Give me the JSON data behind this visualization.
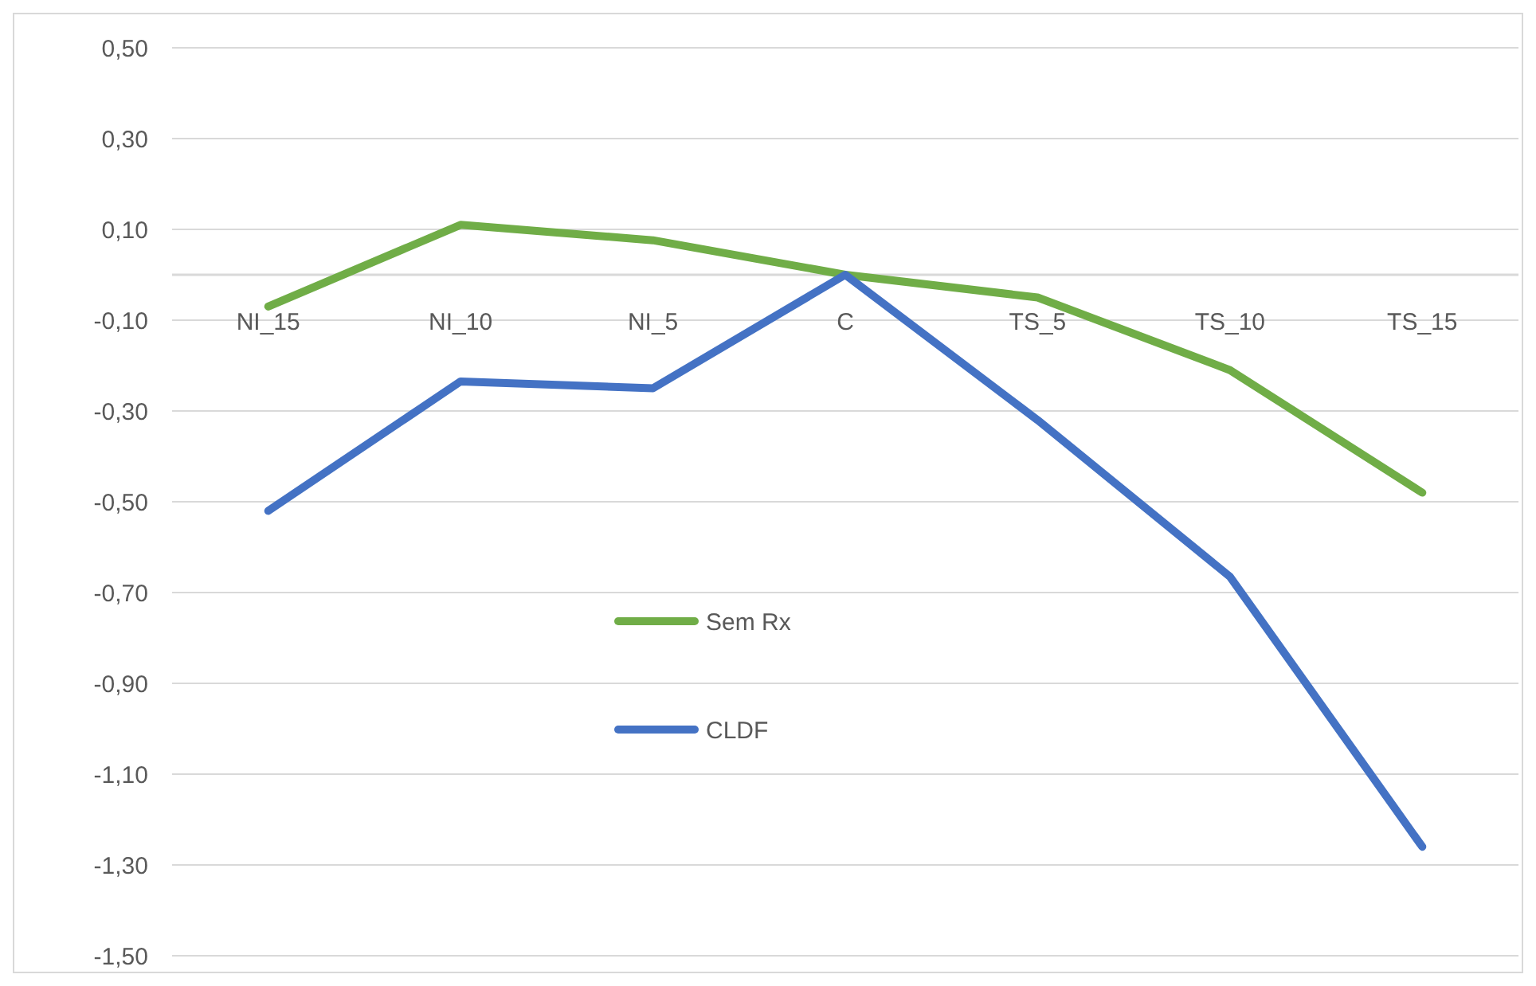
{
  "chart_data": {
    "type": "line",
    "categories": [
      "NI_15",
      "NI_10",
      "NI_5",
      "C",
      "TS_5",
      "TS_10",
      "TS_15"
    ],
    "series": [
      {
        "name": "Sem Rx",
        "color": "#70ad47",
        "values": [
          -0.07,
          0.11,
          0.076,
          0,
          -0.05,
          -0.21,
          -0.48
        ]
      },
      {
        "name": "CLDF",
        "color": "#4472c4",
        "values": [
          -0.52,
          -0.235,
          -0.25,
          0,
          -0.32,
          -0.665,
          -1.26
        ]
      }
    ],
    "ylim": [
      -1.5,
      0.5
    ],
    "yticks": [
      {
        "value": 0.5,
        "label": "0,50"
      },
      {
        "value": 0.3,
        "label": "0,30"
      },
      {
        "value": 0.1,
        "label": "0,10"
      },
      {
        "value": -0.1,
        "label": "-0,10"
      },
      {
        "value": -0.3,
        "label": "-0,30"
      },
      {
        "value": -0.5,
        "label": "-0,50"
      },
      {
        "value": -0.7,
        "label": "-0,70"
      },
      {
        "value": -0.9,
        "label": "-0,90"
      },
      {
        "value": -1.1,
        "label": "-1,10"
      },
      {
        "value": -1.3,
        "label": "-1,30"
      },
      {
        "value": -1.5,
        "label": "-1,50"
      }
    ],
    "grid": "y",
    "legend": "center",
    "marker": "none",
    "line_style": "solid"
  }
}
